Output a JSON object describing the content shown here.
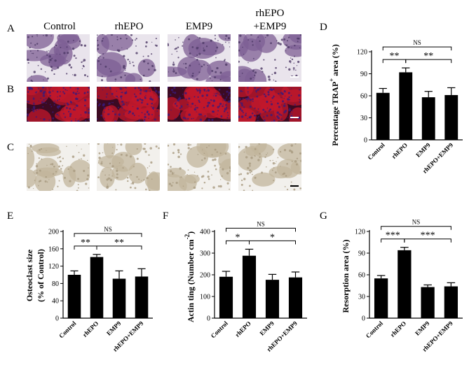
{
  "micrographs": {
    "columns": [
      "Control",
      "rhEPO",
      "EMP9",
      "rhEPO",
      "+EMP9"
    ],
    "rows": [
      {
        "letter": "A",
        "name": "trap-stain",
        "bg": "#e9e4ec",
        "fg": "#7d5f94",
        "dark": "#4e3a66"
      },
      {
        "letter": "B",
        "name": "fluorescence",
        "bg": "#3c0a22",
        "fg": "#c2182c",
        "dark": "#3a1a7a"
      },
      {
        "letter": "C",
        "name": "resorption-pit",
        "bg": "#f2f0ec",
        "fg": "#c2b59c",
        "dark": "#a89a80"
      }
    ]
  },
  "chart_data": [
    {
      "panel": "D",
      "type": "bar",
      "categories": [
        "Control",
        "rhEPO",
        "EMP9",
        "rhEPO+EMP9"
      ],
      "values": [
        64,
        92,
        58,
        61
      ],
      "errors": [
        6,
        6,
        8,
        10
      ],
      "ylabel_main": "Percentage TRAP",
      "ylabel_sup": "+",
      "ylabel_tail": " area (%)",
      "ylim": [
        0,
        120
      ],
      "yticks": [
        0,
        30,
        60,
        90,
        120
      ],
      "sig": [
        {
          "from": 0,
          "to": 1,
          "label": "**"
        },
        {
          "from": 1,
          "to": 3,
          "label": "**"
        },
        {
          "from": 0,
          "to": 3,
          "label": "NS"
        }
      ]
    },
    {
      "panel": "E",
      "type": "bar",
      "categories": [
        "Control",
        "rhEPO",
        "EMP9",
        "rhEPO+EMP9"
      ],
      "values": [
        100,
        141,
        91,
        96
      ],
      "errors": [
        9,
        6,
        18,
        18
      ],
      "ylabel_line1": "Osteoclast size",
      "ylabel_line2": "(% of Control)",
      "ylim": [
        0,
        200
      ],
      "yticks": [
        0,
        40,
        80,
        120,
        160,
        200
      ],
      "sig": [
        {
          "from": 0,
          "to": 1,
          "label": "**"
        },
        {
          "from": 1,
          "to": 3,
          "label": "**"
        },
        {
          "from": 0,
          "to": 3,
          "label": "NS"
        }
      ]
    },
    {
      "panel": "F",
      "type": "bar",
      "categories": [
        "Control",
        "rhEPO",
        "EMP9",
        "rhEPO+EMP9"
      ],
      "values": [
        191,
        288,
        177,
        188
      ],
      "errors": [
        25,
        30,
        25,
        25
      ],
      "ylabel_main": "Actin ting (Number cm",
      "ylabel_sup": "-2",
      "ylabel_tail": ")",
      "ylim": [
        0,
        400
      ],
      "yticks": [
        0,
        100,
        200,
        300,
        400
      ],
      "sig": [
        {
          "from": 0,
          "to": 1,
          "label": "*"
        },
        {
          "from": 1,
          "to": 3,
          "label": "*"
        },
        {
          "from": 0,
          "to": 3,
          "label": "NS"
        }
      ]
    },
    {
      "panel": "G",
      "type": "bar",
      "categories": [
        "Control",
        "rhEPO",
        "EMP9",
        "rhEPO+EMP9"
      ],
      "values": [
        55,
        94,
        43,
        44
      ],
      "errors": [
        4,
        4,
        3,
        5
      ],
      "ylabel_main": "Resorption area (%)",
      "ylim": [
        0,
        120
      ],
      "yticks": [
        0,
        30,
        60,
        90,
        120
      ],
      "sig": [
        {
          "from": 0,
          "to": 1,
          "label": "***"
        },
        {
          "from": 1,
          "to": 3,
          "label": "***"
        },
        {
          "from": 0,
          "to": 3,
          "label": "NS"
        }
      ]
    }
  ]
}
